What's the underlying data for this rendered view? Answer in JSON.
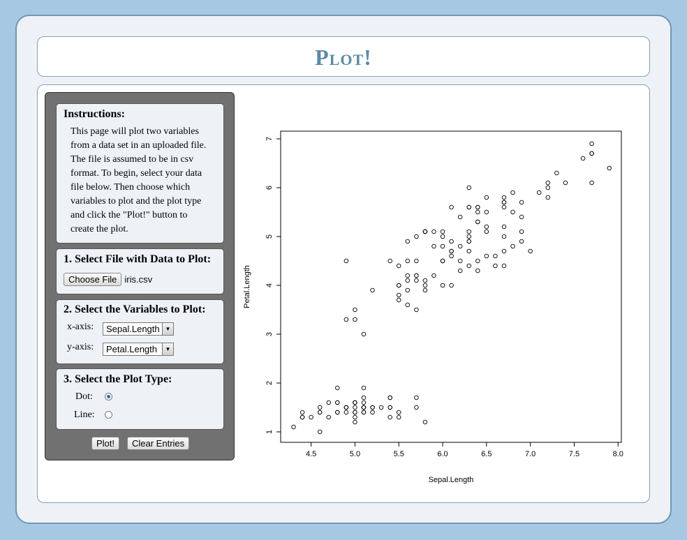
{
  "header": {
    "title": "Plot!"
  },
  "instructions": {
    "heading": "Instructions:",
    "lines": [
      "This page will plot two variables",
      "from a data set in an uploaded file.",
      "The file is assumed to be in csv",
      "format. To begin, select your data",
      "file below. Then choose which",
      "variables to plot and the plot type",
      "and click the \"Plot!\" button to",
      "create the plot."
    ]
  },
  "step1": {
    "heading": "1. Select File with Data to Plot:",
    "button": "Choose File",
    "filename": "iris.csv"
  },
  "step2": {
    "heading": "2. Select the Variables to Plot:",
    "x_label": "x-axis:",
    "x_value": "Sepal.Length",
    "y_label": "y-axis:",
    "y_value": "Petal.Length"
  },
  "step3": {
    "heading": "3. Select the Plot Type:",
    "dot_label": "Dot:",
    "line_label": "Line:",
    "selected": "Dot"
  },
  "actions": {
    "plot": "Plot!",
    "clear": "Clear Entries"
  },
  "chart_data": {
    "type": "scatter",
    "xlabel": "Sepal.Length",
    "ylabel": "Petal.Length",
    "xlim": [
      4.3,
      7.9
    ],
    "ylim": [
      1,
      6.9
    ],
    "xticks": [
      "4.5",
      "5.0",
      "5.5",
      "6.0",
      "6.5",
      "7.0",
      "7.5",
      "8.0"
    ],
    "yticks": [
      "1",
      "2",
      "3",
      "4",
      "5",
      "6",
      "7"
    ],
    "x": [
      5.1,
      4.9,
      4.7,
      4.6,
      5.0,
      5.4,
      4.6,
      5.0,
      4.4,
      4.9,
      5.4,
      4.8,
      4.8,
      4.3,
      5.8,
      5.7,
      5.4,
      5.1,
      5.7,
      5.1,
      5.4,
      5.1,
      4.6,
      5.1,
      4.8,
      5.0,
      5.0,
      5.2,
      5.2,
      4.7,
      4.8,
      5.4,
      5.2,
      5.5,
      4.9,
      5.0,
      5.5,
      4.9,
      4.4,
      5.1,
      5.0,
      4.5,
      4.4,
      5.0,
      5.1,
      4.8,
      5.1,
      4.6,
      5.3,
      5.0,
      7.0,
      6.4,
      6.9,
      5.5,
      6.5,
      5.7,
      6.3,
      4.9,
      6.6,
      5.2,
      5.0,
      5.9,
      6.0,
      6.1,
      5.6,
      6.7,
      5.6,
      5.8,
      6.2,
      5.6,
      5.9,
      6.1,
      6.3,
      6.1,
      6.4,
      6.6,
      6.8,
      6.7,
      6.0,
      5.7,
      5.5,
      5.5,
      5.8,
      6.0,
      5.4,
      6.0,
      6.7,
      6.3,
      5.6,
      5.5,
      5.5,
      6.1,
      5.8,
      5.0,
      5.6,
      5.7,
      5.7,
      6.2,
      5.1,
      5.7,
      6.3,
      5.8,
      7.1,
      6.3,
      6.5,
      7.6,
      4.9,
      7.3,
      6.7,
      7.2,
      6.5,
      6.4,
      6.8,
      5.7,
      5.8,
      6.4,
      6.5,
      7.7,
      7.7,
      6.0,
      6.9,
      5.6,
      7.7,
      6.3,
      6.7,
      7.2,
      6.2,
      6.1,
      6.4,
      7.2,
      7.4,
      7.9,
      6.4,
      6.3,
      6.1,
      7.7,
      6.3,
      6.4,
      6.0,
      6.9,
      6.7,
      6.9,
      5.8,
      6.8,
      6.7,
      6.7,
      6.3,
      6.5,
      6.2,
      5.9
    ],
    "y": [
      1.4,
      1.4,
      1.3,
      1.5,
      1.4,
      1.7,
      1.4,
      1.5,
      1.4,
      1.5,
      1.5,
      1.6,
      1.4,
      1.1,
      1.2,
      1.5,
      1.3,
      1.4,
      1.7,
      1.5,
      1.7,
      1.5,
      1.0,
      1.7,
      1.9,
      1.6,
      1.6,
      1.5,
      1.4,
      1.6,
      1.6,
      1.5,
      1.5,
      1.4,
      1.5,
      1.2,
      1.3,
      1.5,
      1.3,
      1.5,
      1.3,
      1.3,
      1.3,
      1.6,
      1.9,
      1.4,
      1.6,
      1.4,
      1.5,
      1.4,
      4.7,
      4.5,
      4.9,
      4.0,
      4.6,
      4.5,
      4.7,
      3.3,
      4.6,
      3.9,
      3.5,
      4.2,
      4.0,
      4.7,
      3.6,
      4.4,
      4.5,
      4.1,
      4.5,
      3.9,
      4.8,
      4.0,
      4.9,
      4.7,
      4.3,
      4.4,
      4.8,
      5.0,
      4.5,
      3.5,
      3.8,
      3.7,
      3.9,
      5.1,
      4.5,
      4.5,
      4.7,
      4.4,
      4.1,
      4.0,
      4.4,
      4.6,
      4.0,
      3.3,
      4.2,
      4.2,
      4.2,
      4.3,
      3.0,
      4.1,
      6.0,
      5.1,
      5.9,
      5.6,
      5.8,
      6.6,
      4.5,
      6.3,
      5.8,
      6.1,
      5.1,
      5.3,
      5.5,
      5.0,
      5.1,
      5.3,
      5.5,
      6.7,
      6.9,
      5.0,
      5.7,
      4.9,
      6.7,
      4.9,
      5.7,
      6.0,
      4.8,
      4.9,
      5.6,
      5.8,
      6.1,
      6.4,
      5.6,
      5.1,
      5.6,
      6.1,
      5.6,
      5.5,
      4.8,
      5.4,
      5.6,
      5.1,
      5.1,
      5.9,
      5.7,
      5.2,
      5.0,
      5.2,
      5.4,
      5.1
    ]
  }
}
